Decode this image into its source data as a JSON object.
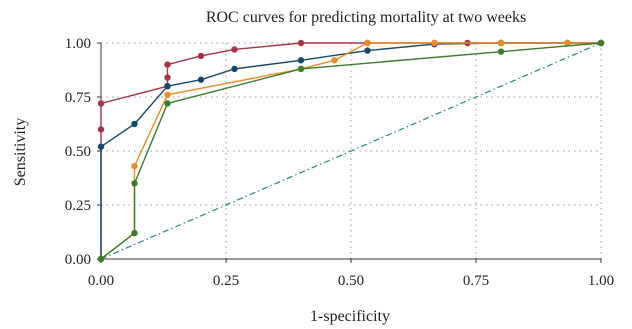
{
  "chart_data": {
    "type": "line",
    "title": "ROC curves for predicting mortality at two weeks",
    "xlabel": "1-specificity",
    "ylabel": "Sensitivity",
    "xlim": [
      0,
      1
    ],
    "ylim": [
      0,
      1
    ],
    "x_ticks": [
      "0.00",
      "0.25",
      "0.50",
      "0.75",
      "1.00"
    ],
    "y_ticks": [
      "0.00",
      "0.25",
      "0.50",
      "0.75",
      "1.00"
    ],
    "grid": true,
    "legend": "none",
    "reference_line": {
      "color": "#1a8a7f",
      "style": "dash-dot",
      "points": [
        [
          0,
          0
        ],
        [
          1,
          1
        ]
      ]
    },
    "series": [
      {
        "color": "#a83246",
        "points": [
          [
            0,
            0
          ],
          [
            0,
            0.6
          ],
          [
            0,
            0.72
          ],
          [
            0.133,
            0.8
          ],
          [
            0.133,
            0.84
          ],
          [
            0.133,
            0.9
          ],
          [
            0.2,
            0.94
          ],
          [
            0.267,
            0.97
          ],
          [
            0.4,
            1.0
          ],
          [
            0.533,
            1.0
          ],
          [
            0.667,
            1.0
          ],
          [
            0.733,
            1.0
          ],
          [
            0.8,
            1.0
          ],
          [
            0.933,
            1.0
          ],
          [
            1.0,
            1.0
          ]
        ]
      },
      {
        "color": "#15496b",
        "points": [
          [
            0,
            0
          ],
          [
            0,
            0.52
          ],
          [
            0.067,
            0.625
          ],
          [
            0.133,
            0.8
          ],
          [
            0.2,
            0.83
          ],
          [
            0.267,
            0.88
          ],
          [
            0.4,
            0.92
          ],
          [
            0.533,
            0.965
          ],
          [
            0.667,
            0.995
          ],
          [
            0.8,
            1.0
          ],
          [
            0.933,
            1.0
          ],
          [
            1.0,
            1.0
          ]
        ]
      },
      {
        "color": "#f08a24",
        "points": [
          [
            0,
            0
          ],
          [
            0.067,
            0.12
          ],
          [
            0.067,
            0.43
          ],
          [
            0.133,
            0.76
          ],
          [
            0.4,
            0.88
          ],
          [
            0.467,
            0.92
          ],
          [
            0.533,
            1.0
          ],
          [
            0.667,
            1.0
          ],
          [
            0.8,
            1.0
          ],
          [
            0.933,
            1.0
          ],
          [
            1.0,
            1.0
          ]
        ]
      },
      {
        "color": "#3a7d2c",
        "points": [
          [
            0,
            0
          ],
          [
            0.067,
            0.12
          ],
          [
            0.067,
            0.35
          ],
          [
            0.133,
            0.72
          ],
          [
            0.4,
            0.88
          ],
          [
            0.8,
            0.96
          ],
          [
            1.0,
            1.0
          ]
        ]
      }
    ]
  }
}
